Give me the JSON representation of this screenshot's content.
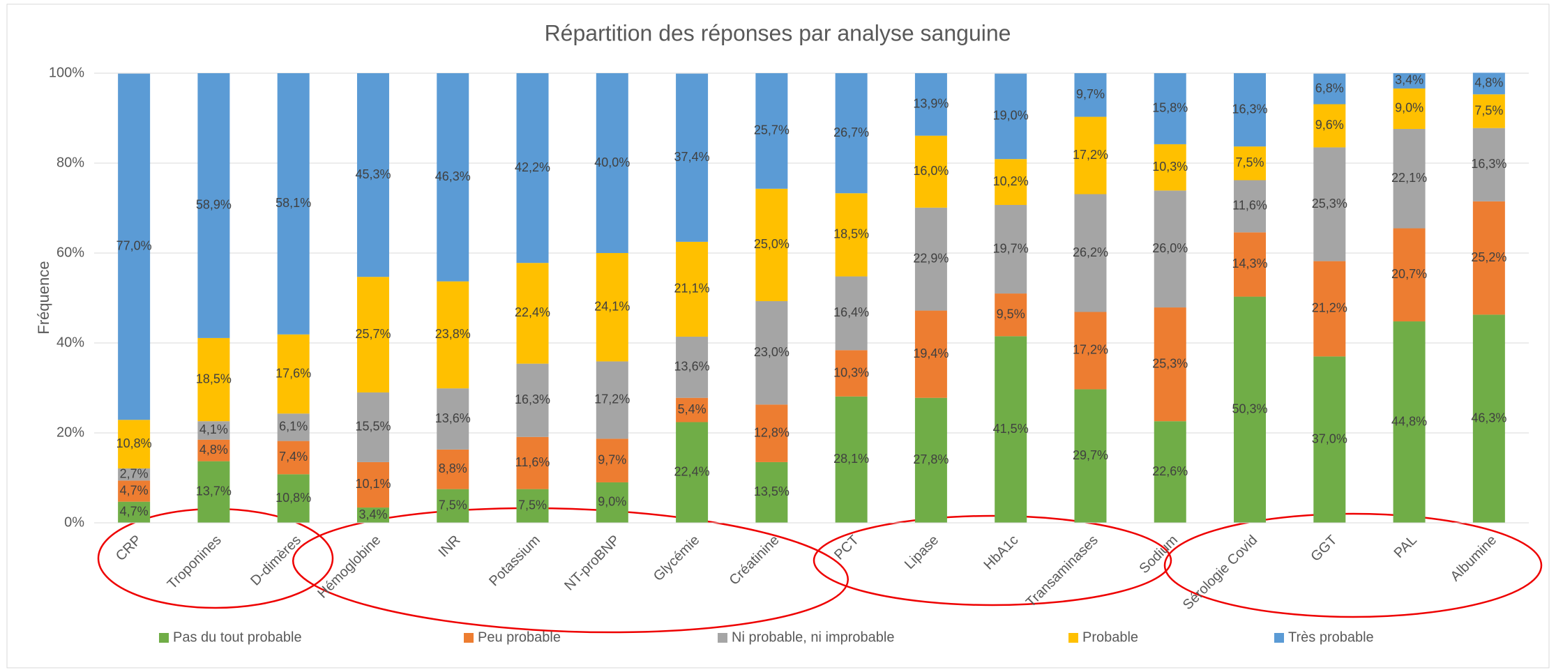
{
  "chart_data": {
    "type": "stacked_bar",
    "title": "Répartition des réponses par analyse sanguine",
    "y_label": "Fréquence",
    "categories": [
      "CRP",
      "Troponines",
      "D-dimères",
      "Hémoglobine",
      "INR",
      "Potassium",
      "NT-proBNP",
      "Glycémie",
      "Créatinine",
      "PCT",
      "Lipase",
      "HbA1c",
      "Transaminases",
      "Sodium",
      "Sérologie Covid",
      "GGT",
      "PAL",
      "Albumine"
    ],
    "series": [
      {
        "name": "Pas du tout probable",
        "color": "#70ad47",
        "values": [
          4.7,
          13.7,
          10.8,
          3.4,
          7.5,
          7.5,
          9.0,
          22.4,
          13.5,
          28.1,
          27.8,
          41.5,
          29.7,
          22.6,
          50.3,
          37.0,
          44.8,
          46.3
        ],
        "value_labels": [
          "4,7%",
          "13,7%",
          "10,8%",
          "3,4%",
          "7,5%",
          "7,5%",
          "9,0%",
          "22,4%",
          "13,5%",
          "28,1%",
          "27,8%",
          "41,5%",
          "29,7%",
          "22,6%",
          "50,3%",
          "37,0%",
          "44,8%",
          "46,3%"
        ]
      },
      {
        "name": "Peu probable",
        "color": "#ed7d31",
        "values": [
          4.7,
          4.8,
          7.4,
          10.1,
          8.8,
          11.6,
          9.7,
          5.4,
          12.8,
          10.3,
          19.4,
          9.5,
          17.2,
          25.3,
          14.3,
          21.2,
          20.7,
          25.2
        ],
        "value_labels": [
          "4,7%",
          "4,8%",
          "7,4%",
          "10,1%",
          "8,8%",
          "11,6%",
          "9,7%",
          "5,4%",
          "12,8%",
          "10,3%",
          "19,4%",
          "9,5%",
          "17,2%",
          "25,3%",
          "14,3%",
          "21,2%",
          "20,7%",
          "25,2%"
        ]
      },
      {
        "name": "Ni probable, ni improbable",
        "color": "#a5a5a5",
        "values": [
          2.7,
          4.1,
          6.1,
          15.5,
          13.6,
          16.3,
          17.2,
          13.6,
          23.0,
          16.4,
          22.9,
          19.7,
          26.2,
          26.0,
          11.6,
          25.3,
          22.1,
          16.3
        ],
        "value_labels": [
          "2,7%",
          "4,1%",
          "6,1%",
          "15,5%",
          "13,6%",
          "16,3%",
          "17,2%",
          "13,6%",
          "23,0%",
          "16,4%",
          "22,9%",
          "19,7%",
          "26,2%",
          "26,0%",
          "11,6%",
          "25,3%",
          "22,1%",
          "16,3%"
        ]
      },
      {
        "name": "Probable",
        "color": "#ffc000",
        "values": [
          10.8,
          18.5,
          17.6,
          25.7,
          23.8,
          22.4,
          24.1,
          21.1,
          25.0,
          18.5,
          16.0,
          10.2,
          17.2,
          10.3,
          7.5,
          9.6,
          9.0,
          7.5
        ],
        "value_labels": [
          "10,8%",
          "18,5%",
          "17,6%",
          "25,7%",
          "23,8%",
          "22,4%",
          "24,1%",
          "21,1%",
          "25,0%",
          "18,5%",
          "16,0%",
          "10,2%",
          "17,2%",
          "10,3%",
          "7,5%",
          "9,6%",
          "9,0%",
          "7,5%"
        ]
      },
      {
        "name": "Très probable",
        "color": "#5b9bd5",
        "values": [
          77.0,
          58.9,
          58.1,
          45.3,
          46.3,
          42.2,
          40.0,
          37.4,
          25.7,
          26.7,
          13.9,
          19.0,
          9.7,
          15.8,
          16.3,
          6.8,
          3.4,
          4.8
        ],
        "value_labels": [
          "77,0%",
          "58,9%",
          "58,1%",
          "45,3%",
          "46,3%",
          "42,2%",
          "40,0%",
          "37,4%",
          "25,7%",
          "26,7%",
          "13,9%",
          "19,0%",
          "9,7%",
          "15,8%",
          "16,3%",
          "6,8%",
          "3,4%",
          "4,8%"
        ]
      }
    ],
    "ylim": [
      0,
      100
    ],
    "yticks": [
      {
        "value": 0,
        "label": "0%"
      },
      {
        "value": 20,
        "label": "20%"
      },
      {
        "value": 40,
        "label": "40%"
      },
      {
        "value": 60,
        "label": "60%"
      },
      {
        "value": 80,
        "label": "80%"
      },
      {
        "value": 100,
        "label": "100%"
      }
    ],
    "grid": true,
    "legend": "bottom"
  }
}
